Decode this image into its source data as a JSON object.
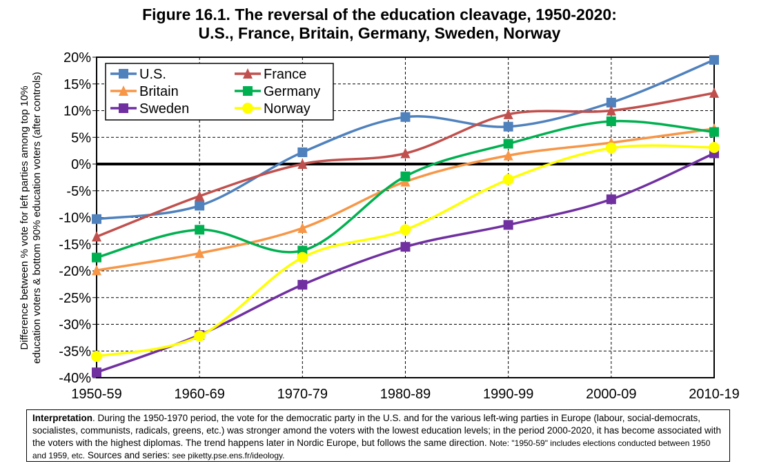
{
  "chart_data": {
    "type": "line",
    "title": "Figure 16.1. The reversal of the education cleavage, 1950-2020:",
    "subtitle": "U.S., France, Britain, Germany, Sweden, Norway",
    "ylabel_line1": "Difference between % vote for left parties among top 10%",
    "ylabel_line2": "education voters & bottom 90% education voters (after controls)",
    "xlabel": "",
    "categories": [
      "1950-59",
      "1960-69",
      "1970-79",
      "1980-89",
      "1990-99",
      "2000-09",
      "2010-19"
    ],
    "ylim": [
      -40,
      20
    ],
    "yticks": [
      20,
      15,
      10,
      5,
      0,
      -5,
      -10,
      -15,
      -20,
      -25,
      -30,
      -35,
      -40
    ],
    "ytick_labels": [
      "20%",
      "15%",
      "10%",
      "5%",
      "0%",
      "-5%",
      "-10%",
      "-15%",
      "-20%",
      "-25%",
      "-30%",
      "-35%",
      "-40%"
    ],
    "grid": "dashed",
    "legend_position": "top-left",
    "series": [
      {
        "name": "U.S.",
        "color": "#4f81bd",
        "marker": "square",
        "values": [
          -10.3,
          -7.8,
          2.2,
          8.8,
          7.0,
          11.5,
          19.5
        ]
      },
      {
        "name": "France",
        "color": "#c0504d",
        "marker": "triangle",
        "values": [
          -13.6,
          -6.0,
          0.0,
          2.0,
          9.3,
          10.0,
          13.3
        ]
      },
      {
        "name": "Britain",
        "color": "#f79646",
        "marker": "triangle",
        "values": [
          -19.9,
          -16.7,
          -12.0,
          -3.3,
          1.6,
          4.0,
          6.6
        ]
      },
      {
        "name": "Germany",
        "color": "#00b050",
        "marker": "square",
        "values": [
          -17.5,
          -12.3,
          -16.2,
          -2.3,
          3.8,
          8.0,
          6.0
        ]
      },
      {
        "name": "Sweden",
        "color": "#7030a0",
        "marker": "square",
        "values": [
          -39.0,
          -32.0,
          -22.6,
          -15.5,
          -11.4,
          -6.6,
          2.0
        ]
      },
      {
        "name": "Norway",
        "color": "#ffff00",
        "marker": "circle",
        "values": [
          -36.0,
          -32.2,
          -17.5,
          -12.3,
          -2.9,
          3.0,
          3.1
        ]
      }
    ]
  },
  "note": {
    "bold1": "Interpretation",
    "text1": ". During the 1950-1970 period, the vote for the democratic party in the U.S. and for the various left-wing parties in Europe (labour, social-democrats, socialistes, communists, radicals, greens, etc.) was stronger amond the voters with the lowest education levels; in the period 2000-2020, it has become associated with the voters with the highest diplomas. The trend happens later in Nordic Europe, but follows the same direction. ",
    "note_label": "Note:",
    "note_text": " \"1950-59\" includes elections conducted between 1950 and 1959, etc.",
    "sources_label": "  Sources and series:",
    "sources_text": " see piketty.pse.ens.fr/ideology."
  }
}
